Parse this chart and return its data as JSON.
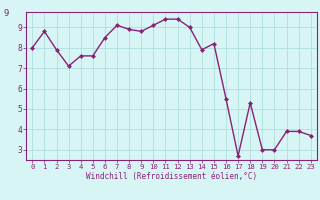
{
  "x": [
    0,
    1,
    2,
    3,
    4,
    5,
    6,
    7,
    8,
    9,
    10,
    11,
    12,
    13,
    14,
    15,
    16,
    17,
    18,
    19,
    20,
    21,
    22,
    23
  ],
  "y": [
    8.0,
    8.8,
    7.9,
    7.1,
    7.6,
    7.6,
    8.5,
    9.1,
    8.9,
    8.8,
    9.1,
    9.4,
    9.4,
    9.0,
    7.9,
    8.2,
    5.5,
    2.7,
    5.3,
    3.0,
    3.0,
    3.9,
    3.9,
    3.7
  ],
  "line_color": "#882277",
  "marker": "D",
  "marker_size": 2,
  "bg_color": "#d8f5f5",
  "grid_color": "#b0dede",
  "axes_face_color": "#d8f5f5",
  "xlabel": "Windchill (Refroidissement éolien,°C)",
  "xlabel_color": "#882277",
  "tick_color": "#882277",
  "ylim": [
    2.5,
    9.75
  ],
  "xlim": [
    -0.5,
    23.5
  ],
  "yticks": [
    3,
    4,
    5,
    6,
    7,
    8,
    9
  ],
  "xticks": [
    0,
    1,
    2,
    3,
    4,
    5,
    6,
    7,
    8,
    9,
    10,
    11,
    12,
    13,
    14,
    15,
    16,
    17,
    18,
    19,
    20,
    21,
    22,
    23
  ],
  "spine_color": "#882277",
  "top_label": "9"
}
